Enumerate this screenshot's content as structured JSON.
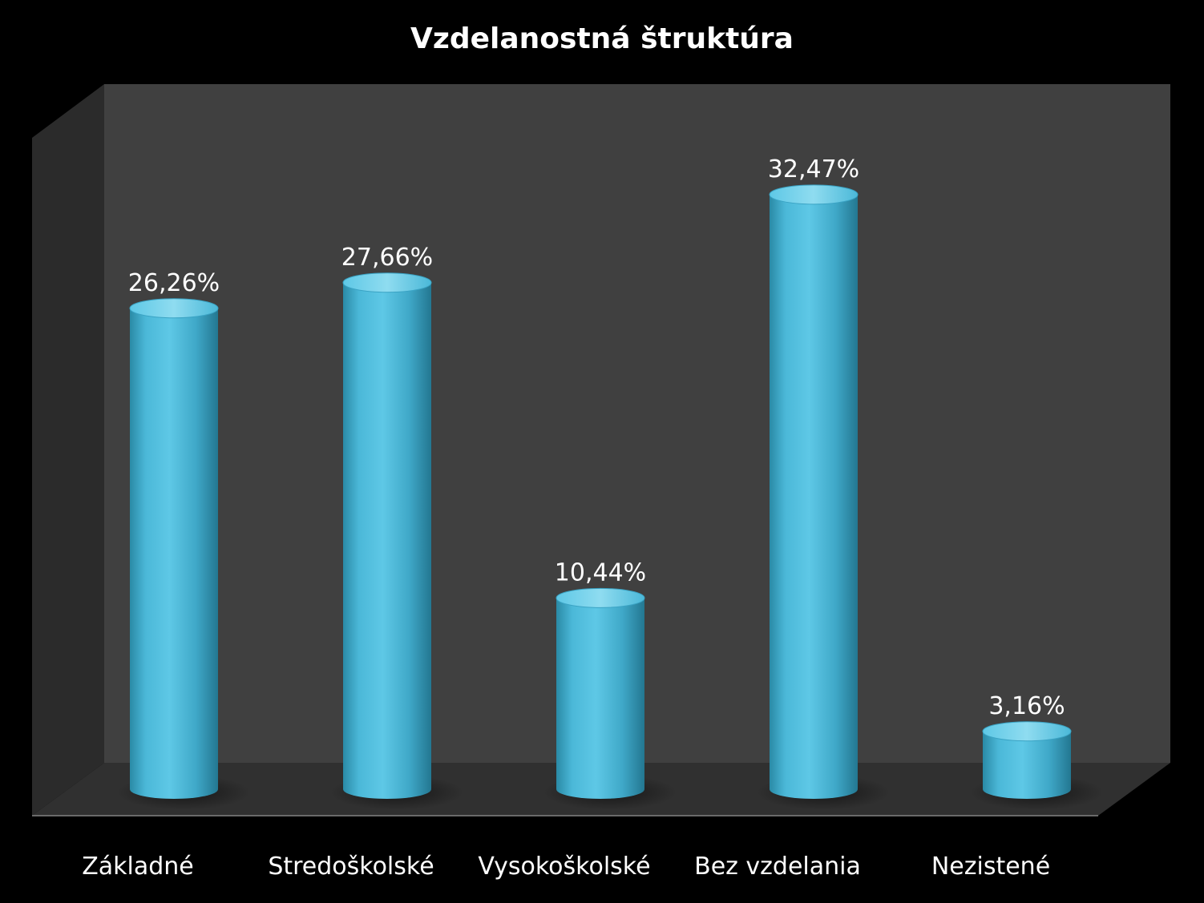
{
  "chart_data": {
    "type": "bar",
    "style": "3d-cylinder",
    "title": "Vzdelanostná štruktúra",
    "categories": [
      "Základné",
      "Stredoškolské",
      "Vysokoškolské",
      "Bez vzdelania",
      "Nezistené"
    ],
    "values": [
      26.26,
      27.66,
      10.44,
      32.47,
      3.16
    ],
    "value_labels": [
      "26,26%",
      "27,66%",
      "10,44%",
      "32,47%",
      "3,16%"
    ],
    "xlabel": "",
    "ylabel": "",
    "ylim": [
      0,
      35
    ],
    "grid": false,
    "legend": "none",
    "colors": {
      "background": "#000000",
      "back_wall": "#404040",
      "side_wall": "#2b2b2b",
      "floor": "#303030",
      "bar": "#4bb8d8",
      "bar_dark": "#2a7f99",
      "bar_light": "#8fdcf0",
      "text": "#ffffff"
    }
  }
}
